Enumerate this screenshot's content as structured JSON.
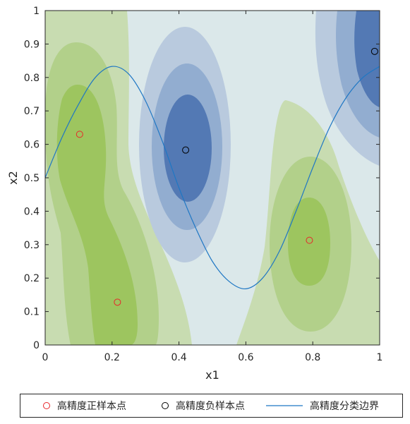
{
  "chart_data": {
    "type": "contour",
    "xlabel": "x1",
    "ylabel": "x2",
    "xlim": [
      0,
      1
    ],
    "ylim": [
      0,
      1
    ],
    "x_ticks": [
      "0",
      "0.2",
      "0.4",
      "0.6",
      "0.8",
      "1"
    ],
    "y_ticks": [
      "0",
      "0.1",
      "0.2",
      "0.3",
      "0.4",
      "0.5",
      "0.6",
      "0.7",
      "0.8",
      "0.9",
      "1"
    ],
    "positive_samples": {
      "name": "高精度正样本点",
      "color": "#e8262a",
      "points": [
        [
          0.103,
          0.63
        ],
        [
          0.216,
          0.128
        ],
        [
          0.79,
          0.313
        ]
      ]
    },
    "negative_samples": {
      "name": "高精度负样本点",
      "color": "#000000",
      "points": [
        [
          0.42,
          0.583
        ],
        [
          0.985,
          0.878
        ]
      ]
    },
    "boundary": {
      "name": "高精度分类边界",
      "color": "#1f77c4",
      "points": [
        [
          0.0,
          0.5
        ],
        [
          0.05,
          0.62
        ],
        [
          0.1,
          0.72
        ],
        [
          0.15,
          0.8
        ],
        [
          0.2,
          0.833
        ],
        [
          0.25,
          0.81
        ],
        [
          0.3,
          0.73
        ],
        [
          0.35,
          0.61
        ],
        [
          0.4,
          0.47
        ],
        [
          0.45,
          0.35
        ],
        [
          0.5,
          0.25
        ],
        [
          0.55,
          0.19
        ],
        [
          0.6,
          0.168
        ],
        [
          0.65,
          0.2
        ],
        [
          0.7,
          0.28
        ],
        [
          0.75,
          0.4
        ],
        [
          0.8,
          0.53
        ],
        [
          0.85,
          0.65
        ],
        [
          0.9,
          0.74
        ],
        [
          0.95,
          0.8
        ],
        [
          1.0,
          0.833
        ]
      ]
    },
    "fill_colors": {
      "background": "#dbe8ea",
      "green_levels": [
        "#c8dcb1",
        "#b2d08a",
        "#9dc55f",
        "#8abc2e"
      ],
      "blue_levels": [
        "#b9cade",
        "#92add0",
        "#6f90c3",
        "#5379b4"
      ]
    },
    "grid": false
  }
}
